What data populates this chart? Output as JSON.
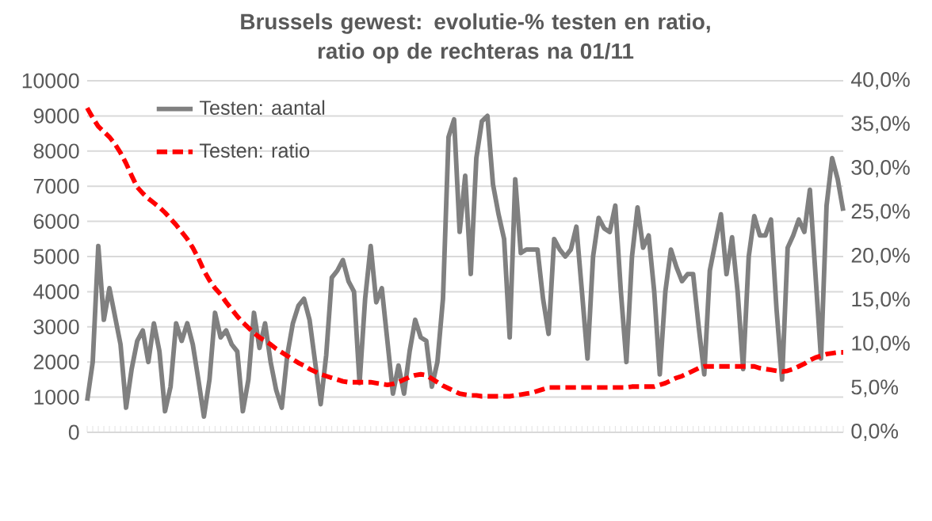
{
  "chart_data": {
    "type": "line",
    "title": "Brussels gewest: evolutie-% testen en ratio,\nratio op de rechteras na 01/11",
    "categories": [
      null,
      null,
      null,
      null,
      null,
      null,
      null,
      null,
      null,
      null,
      null,
      null,
      null,
      null,
      null,
      null,
      null,
      null,
      null,
      null,
      null,
      null,
      null,
      null,
      null,
      null,
      null,
      null,
      null,
      null,
      null,
      null,
      null,
      null,
      null,
      null,
      null,
      null,
      null,
      null,
      null,
      null,
      null,
      null,
      null,
      null,
      null,
      null,
      null,
      null,
      null,
      null,
      null,
      null,
      null,
      null,
      null,
      null,
      null,
      null,
      null,
      null,
      null,
      null,
      null,
      null,
      null,
      null,
      null,
      null,
      null,
      null,
      null,
      null,
      null,
      null,
      null,
      null,
      null,
      null,
      null,
      null,
      null,
      null,
      null,
      null,
      null,
      null,
      null,
      null,
      null,
      null,
      null,
      null,
      null,
      null,
      null,
      null,
      null,
      null,
      null,
      null,
      null,
      null,
      null,
      null,
      null,
      null,
      null,
      null,
      null,
      null,
      null,
      null,
      null,
      null,
      null,
      null,
      null,
      null,
      null,
      null,
      null,
      null,
      null,
      null,
      null,
      null,
      null,
      null,
      null,
      null,
      null,
      null,
      null,
      null,
      null
    ],
    "series": [
      {
        "name": "Testen: aantal",
        "color": "#808080",
        "line_style": "solid",
        "values": [
          900,
          2000,
          5300,
          3200,
          4100,
          3300,
          2500,
          700,
          1800,
          2600,
          2900,
          2000,
          3100,
          2300,
          600,
          1300,
          3100,
          2600,
          3100,
          2500,
          1500,
          450,
          1500,
          3400,
          2700,
          2900,
          2500,
          2300,
          600,
          1500,
          3400,
          2400,
          3100,
          2000,
          1200,
          700,
          2200,
          3100,
          3600,
          3800,
          3200,
          2000,
          800,
          2200,
          4400,
          4600,
          4900,
          4300,
          4000,
          1400,
          3800,
          5300,
          3700,
          4100,
          2600,
          1100,
          1900,
          1100,
          2300,
          3200,
          2700,
          2600,
          1300,
          2000,
          3800,
          8400,
          8900,
          5700,
          7300,
          4500,
          7800,
          8850,
          9000,
          7050,
          6200,
          5500,
          2700,
          7200,
          5100,
          5200,
          5200,
          5200,
          3800,
          2800,
          5500,
          5200,
          5000,
          5200,
          5850,
          4000,
          2100,
          5000,
          6100,
          5800,
          5700,
          6450,
          4000,
          2000,
          5000,
          6400,
          5250,
          5600,
          4000,
          1650,
          4000,
          5200,
          4700,
          4300,
          4500,
          4500,
          3000,
          1650,
          4600,
          5400,
          6200,
          4500,
          5550,
          4000,
          1800,
          5000,
          6150,
          5600,
          5600,
          6050,
          3500,
          1500,
          5250,
          5600,
          6050,
          5700,
          6900,
          4500,
          2100,
          6450,
          7800,
          7200,
          6300
        ]
      },
      {
        "name": "Testen: ratio",
        "color": "#ff0000",
        "line_style": "dashed",
        "axis": "y2",
        "values": [
          36.9,
          35.8,
          34.8,
          34.2,
          33.6,
          32.8,
          31.8,
          30.6,
          29.2,
          27.9,
          27.2,
          26.6,
          26.1,
          25.6,
          25.0,
          24.3,
          23.6,
          22.8,
          22.0,
          21.0,
          19.8,
          18.4,
          17.3,
          16.4,
          15.7,
          14.8,
          14.0,
          13.2,
          12.5,
          11.9,
          11.3,
          10.8,
          10.4,
          10.0,
          9.5,
          9.1,
          8.7,
          8.3,
          7.9,
          7.6,
          7.2,
          6.9,
          6.6,
          6.4,
          6.2,
          6.0,
          5.8,
          5.7,
          5.7,
          5.7,
          5.7,
          5.7,
          5.6,
          5.5,
          5.4,
          5.5,
          5.7,
          6.0,
          6.3,
          6.5,
          6.6,
          6.5,
          6.1,
          5.7,
          5.3,
          5.0,
          4.7,
          4.4,
          4.3,
          4.2,
          4.2,
          4.1,
          4.1,
          4.1,
          4.1,
          4.1,
          4.1,
          4.2,
          4.3,
          4.4,
          4.5,
          4.7,
          4.9,
          5.1,
          5.1,
          5.1,
          5.1,
          5.1,
          5.1,
          5.1,
          5.1,
          5.1,
          5.1,
          5.1,
          5.1,
          5.1,
          5.1,
          5.1,
          5.2,
          5.2,
          5.2,
          5.2,
          5.2,
          5.4,
          5.6,
          5.9,
          6.2,
          6.4,
          6.7,
          7.0,
          7.3,
          7.5,
          7.5,
          7.5,
          7.5,
          7.5,
          7.5,
          7.5,
          7.5,
          7.5,
          7.5,
          7.3,
          7.2,
          7.1,
          7.0,
          6.9,
          7.0,
          7.2,
          7.5,
          7.8,
          8.2,
          8.5,
          8.7,
          8.9,
          9.0,
          9.1,
          9.1
        ]
      }
    ],
    "ylim": [
      0,
      10000
    ],
    "yticks": [
      0,
      1000,
      2000,
      3000,
      4000,
      5000,
      6000,
      7000,
      8000,
      9000,
      10000
    ],
    "y2lim": [
      0,
      40
    ],
    "y2ticks": [
      {
        "value": 0,
        "label": "0,0%"
      },
      {
        "value": 5,
        "label": "5,0%"
      },
      {
        "value": 10,
        "label": "10,0%"
      },
      {
        "value": 15,
        "label": "15,0%"
      },
      {
        "value": 20,
        "label": "20,0%"
      },
      {
        "value": 25,
        "label": "25,0%"
      },
      {
        "value": 30,
        "label": "30,0%"
      },
      {
        "value": 35,
        "label": "35,0%"
      },
      {
        "value": 40,
        "label": "40,0%"
      }
    ],
    "grid": "y",
    "legend": "top left",
    "marker": "none"
  }
}
